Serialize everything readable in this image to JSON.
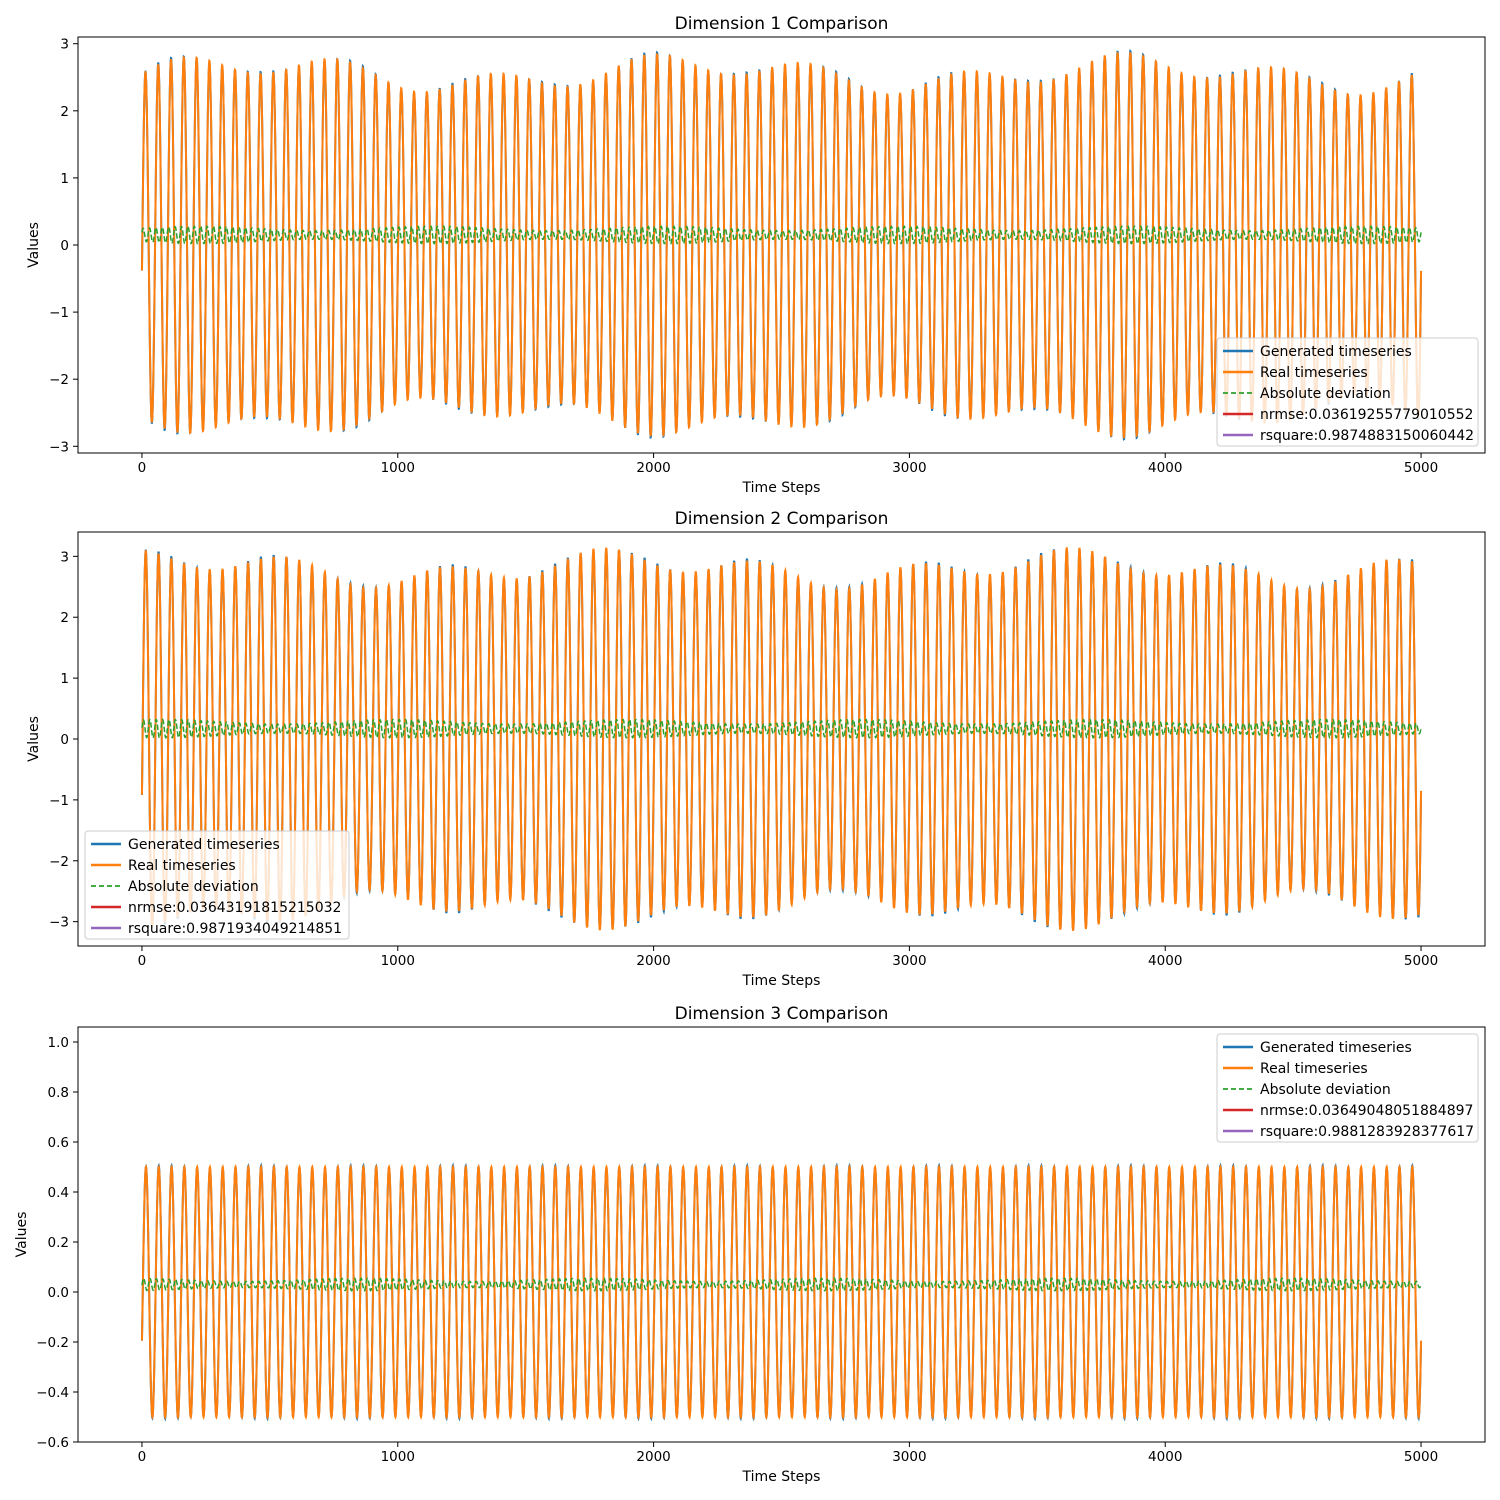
{
  "chart_data": [
    {
      "type": "line",
      "title": "Dimension 1 Comparison",
      "xlabel": "Time Steps",
      "ylabel": "Values",
      "xlim": [
        -250,
        5250
      ],
      "ylim": [
        -3.1,
        3.1
      ],
      "xticks": [
        0,
        1000,
        2000,
        3000,
        4000,
        5000
      ],
      "xtick_labels": [
        "0",
        "1000",
        "2000",
        "3000",
        "4000",
        "5000"
      ],
      "yticks": [
        -3,
        -2,
        -1,
        0,
        1,
        2,
        3
      ],
      "ytick_labels": [
        "−3",
        "−2",
        "−1",
        "0",
        "1",
        "2",
        "3"
      ],
      "grid": false,
      "legend_position": "lower-right",
      "signal": {
        "x_start": 0,
        "x_end": 5000,
        "cycles": 100,
        "amplitude": 2.55,
        "amplitude_variation": 0.25,
        "phase": -0.15
      },
      "series": [
        {
          "name": "Generated timeseries",
          "color": "#1f77b4",
          "style": "solid"
        },
        {
          "name": "Real timeseries",
          "color": "#ff7f0e",
          "style": "solid"
        },
        {
          "name": "Absolute deviation",
          "color": "#2ca02c",
          "style": "dashed",
          "center": 0.15,
          "amplitude": 0.13
        },
        {
          "name": "nrmse:0.03619255779010552",
          "color": "#d62728",
          "style": "solid"
        },
        {
          "name": "rsquare:0.9874883150060442",
          "color": "#9467bd",
          "style": "solid"
        }
      ]
    },
    {
      "type": "line",
      "title": "Dimension 2 Comparison",
      "xlabel": "Time Steps",
      "ylabel": "Values",
      "xlim": [
        -250,
        5250
      ],
      "ylim": [
        -3.4,
        3.4
      ],
      "xticks": [
        0,
        1000,
        2000,
        3000,
        4000,
        5000
      ],
      "xtick_labels": [
        "0",
        "1000",
        "2000",
        "3000",
        "4000",
        "5000"
      ],
      "yticks": [
        -3,
        -2,
        -1,
        0,
        1,
        2,
        3
      ],
      "ytick_labels": [
        "−3",
        "−2",
        "−1",
        "0",
        "1",
        "2",
        "3"
      ],
      "grid": false,
      "legend_position": "lower-left",
      "signal": {
        "x_start": 0,
        "x_end": 5000,
        "cycles": 100,
        "amplitude": 2.8,
        "amplitude_variation": 0.25,
        "phase": -0.3
      },
      "series": [
        {
          "name": "Generated timeseries",
          "color": "#1f77b4",
          "style": "solid"
        },
        {
          "name": "Real timeseries",
          "color": "#ff7f0e",
          "style": "solid"
        },
        {
          "name": "Absolute deviation",
          "color": "#2ca02c",
          "style": "dashed",
          "center": 0.17,
          "amplitude": 0.15
        },
        {
          "name": "nrmse:0.03643191815215032",
          "color": "#d62728",
          "style": "solid"
        },
        {
          "name": "rsquare:0.9871934049214851",
          "color": "#9467bd",
          "style": "solid"
        }
      ]
    },
    {
      "type": "line",
      "title": "Dimension 3 Comparison",
      "xlabel": "Time Steps",
      "ylabel": "Values",
      "xlim": [
        -250,
        5250
      ],
      "ylim": [
        -0.6,
        1.06
      ],
      "xticks": [
        0,
        1000,
        2000,
        3000,
        4000,
        5000
      ],
      "xtick_labels": [
        "0",
        "1000",
        "2000",
        "3000",
        "4000",
        "5000"
      ],
      "yticks": [
        -0.6,
        -0.4,
        -0.2,
        0.0,
        0.2,
        0.4,
        0.6,
        0.8,
        1.0
      ],
      "ytick_labels": [
        "−0.6",
        "−0.4",
        "−0.2",
        "0.0",
        "0.2",
        "0.4",
        "0.6",
        "0.8",
        "1.0"
      ],
      "grid": false,
      "legend_position": "upper-right",
      "signal": {
        "x_start": 0,
        "x_end": 5000,
        "cycles": 100,
        "amplitude": 0.5,
        "amplitude_variation": 0.0,
        "phase": -0.4
      },
      "series": [
        {
          "name": "Generated timeseries",
          "color": "#1f77b4",
          "style": "solid"
        },
        {
          "name": "Real timeseries",
          "color": "#ff7f0e",
          "style": "solid"
        },
        {
          "name": "Absolute deviation",
          "color": "#2ca02c",
          "style": "dashed",
          "center": 0.03,
          "amplitude": 0.025
        },
        {
          "name": "nrmse:0.03649048051884897",
          "color": "#d62728",
          "style": "solid"
        },
        {
          "name": "rsquare:0.9881283928377617",
          "color": "#9467bd",
          "style": "solid"
        }
      ]
    }
  ]
}
